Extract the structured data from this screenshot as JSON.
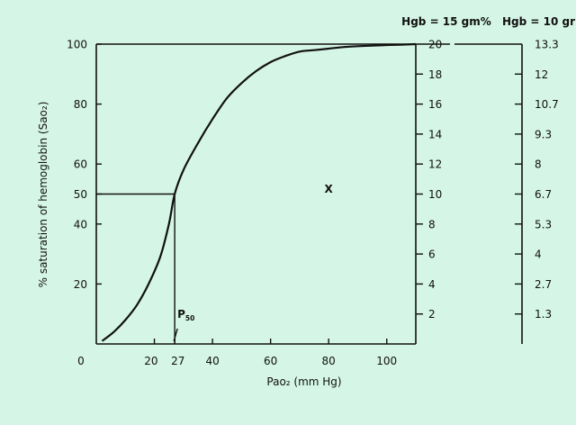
{
  "chart_data": {
    "type": "line",
    "title": "",
    "xlabel": "Pao₂ (mm Hg)",
    "ylabel": "% saturation of hemoglobin (Sao₂)",
    "xlim": [
      0,
      110
    ],
    "ylim": [
      0,
      100
    ],
    "x_ticks": [
      {
        "value": 0,
        "label": "0"
      },
      {
        "value": 20,
        "label": "20"
      },
      {
        "value": 27,
        "label": "27"
      },
      {
        "value": 40,
        "label": "40"
      },
      {
        "value": 60,
        "label": "60"
      },
      {
        "value": 80,
        "label": "80"
      },
      {
        "value": 100,
        "label": "100"
      }
    ],
    "y_ticks": [
      {
        "value": 20,
        "label": "20"
      },
      {
        "value": 40,
        "label": "40"
      },
      {
        "value": 50,
        "label": "50"
      },
      {
        "value": 60,
        "label": "60"
      },
      {
        "value": 80,
        "label": "80"
      },
      {
        "value": 100,
        "label": "100"
      }
    ],
    "right_axis_1": {
      "title": "Hgb = 15 gm%",
      "ticks": [
        {
          "sat": 10,
          "label": "2"
        },
        {
          "sat": 20,
          "label": "4"
        },
        {
          "sat": 30,
          "label": "6"
        },
        {
          "sat": 40,
          "label": "8"
        },
        {
          "sat": 50,
          "label": "10"
        },
        {
          "sat": 60,
          "label": "12"
        },
        {
          "sat": 70,
          "label": "14"
        },
        {
          "sat": 80,
          "label": "16"
        },
        {
          "sat": 90,
          "label": "18"
        },
        {
          "sat": 100,
          "label": "20"
        }
      ]
    },
    "right_axis_2": {
      "title": "Hgb = 10 gr",
      "ticks": [
        {
          "sat": 10,
          "label": "1.3"
        },
        {
          "sat": 20,
          "label": "2.7"
        },
        {
          "sat": 30,
          "label": "4"
        },
        {
          "sat": 40,
          "label": "5.3"
        },
        {
          "sat": 50,
          "label": "6.7"
        },
        {
          "sat": 60,
          "label": "8"
        },
        {
          "sat": 70,
          "label": "9.3"
        },
        {
          "sat": 80,
          "label": "10.7"
        },
        {
          "sat": 90,
          "label": "12"
        },
        {
          "sat": 100,
          "label": "13.3"
        }
      ]
    },
    "series": [
      {
        "x": [
          2,
          6,
          10,
          14,
          18,
          22,
          25,
          27,
          30,
          35,
          40,
          45,
          50,
          55,
          60,
          65,
          70,
          75,
          80,
          85,
          90,
          95,
          100,
          105,
          110
        ],
        "y": [
          1,
          4,
          8,
          13,
          20,
          29,
          40,
          50,
          58,
          67,
          75,
          82,
          87,
          91,
          94,
          96,
          97.5,
          98,
          98.5,
          99,
          99.3,
          99.5,
          99.7,
          99.8,
          100
        ]
      }
    ],
    "p50": {
      "x": 27,
      "y": 50,
      "label": "P50"
    },
    "annotations": [
      {
        "text": "X",
        "x": 80,
        "y": 52
      }
    ],
    "grid": false,
    "colors": {
      "background": "#d5f5e6",
      "ink": "#111111"
    }
  }
}
